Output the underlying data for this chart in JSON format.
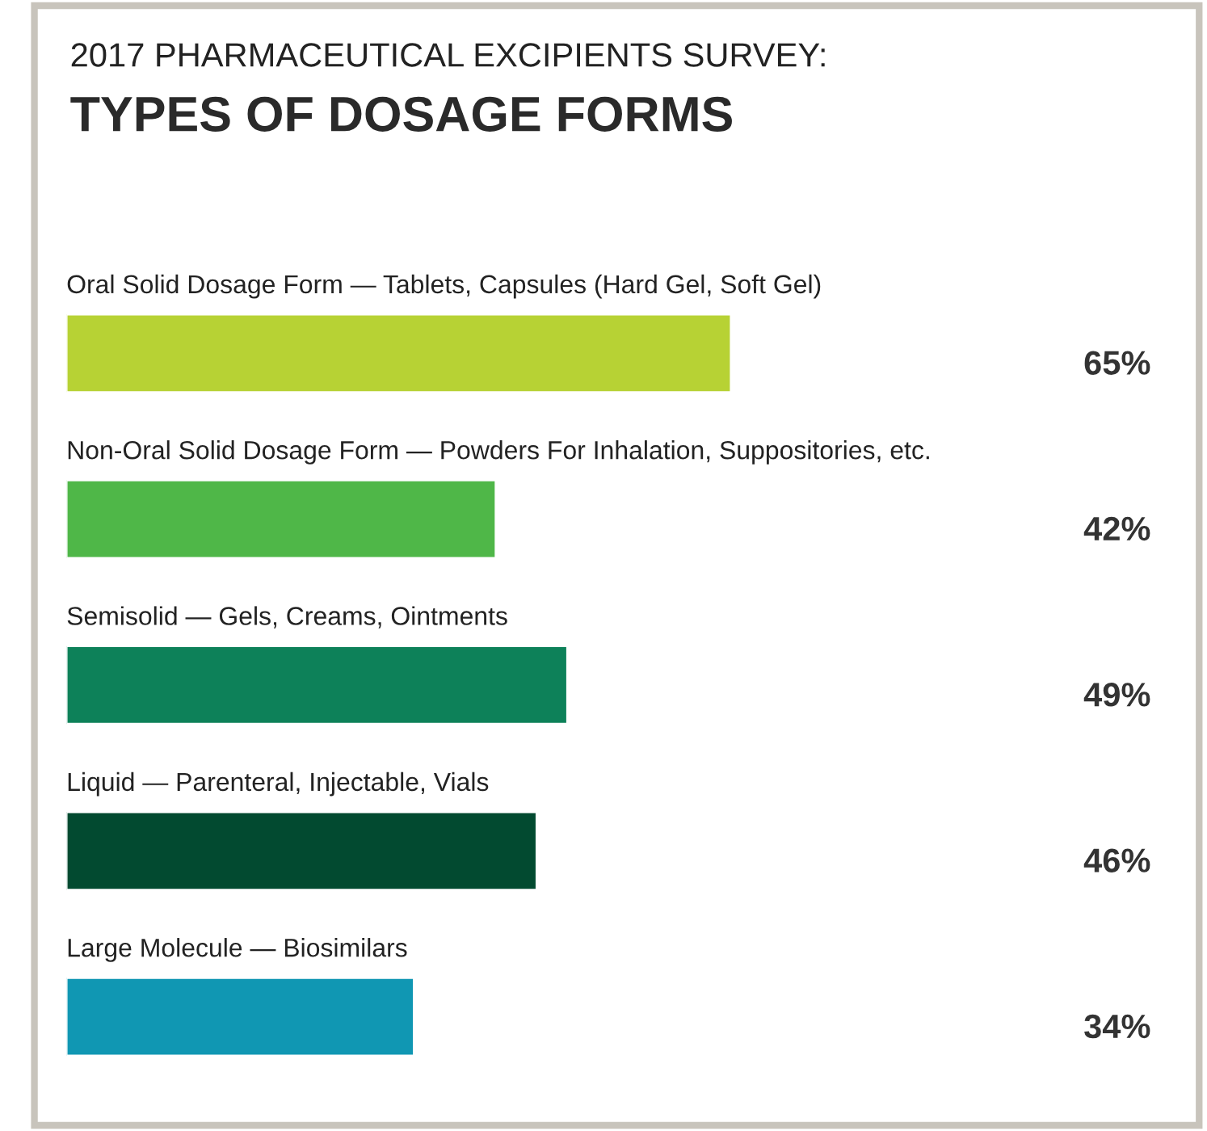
{
  "chart_data": {
    "type": "bar",
    "orientation": "horizontal",
    "title": "2017 PHARMACEUTICAL EXCIPIENTS SURVEY:",
    "subtitle": "TYPES OF DOSAGE FORMS",
    "categories": [
      "Oral Solid Dosage Form — Tablets, Capsules (Hard Gel, Soft Gel)",
      "Non-Oral Solid Dosage Form — Powders For Inhalation, Suppositories, etc.",
      "Semisolid — Gels, Creams, Ointments",
      "Liquid — Parenteral, Injectable, Vials",
      "Large Molecule — Biosimilars"
    ],
    "values": [
      65,
      42,
      49,
      46,
      34
    ],
    "value_labels": [
      "65%",
      "42%",
      "49%",
      "46%",
      "34%"
    ],
    "colors": [
      "#b7d234",
      "#4fb748",
      "#0d8159",
      "#024a30",
      "#1097b3"
    ],
    "data_labels": false
  }
}
